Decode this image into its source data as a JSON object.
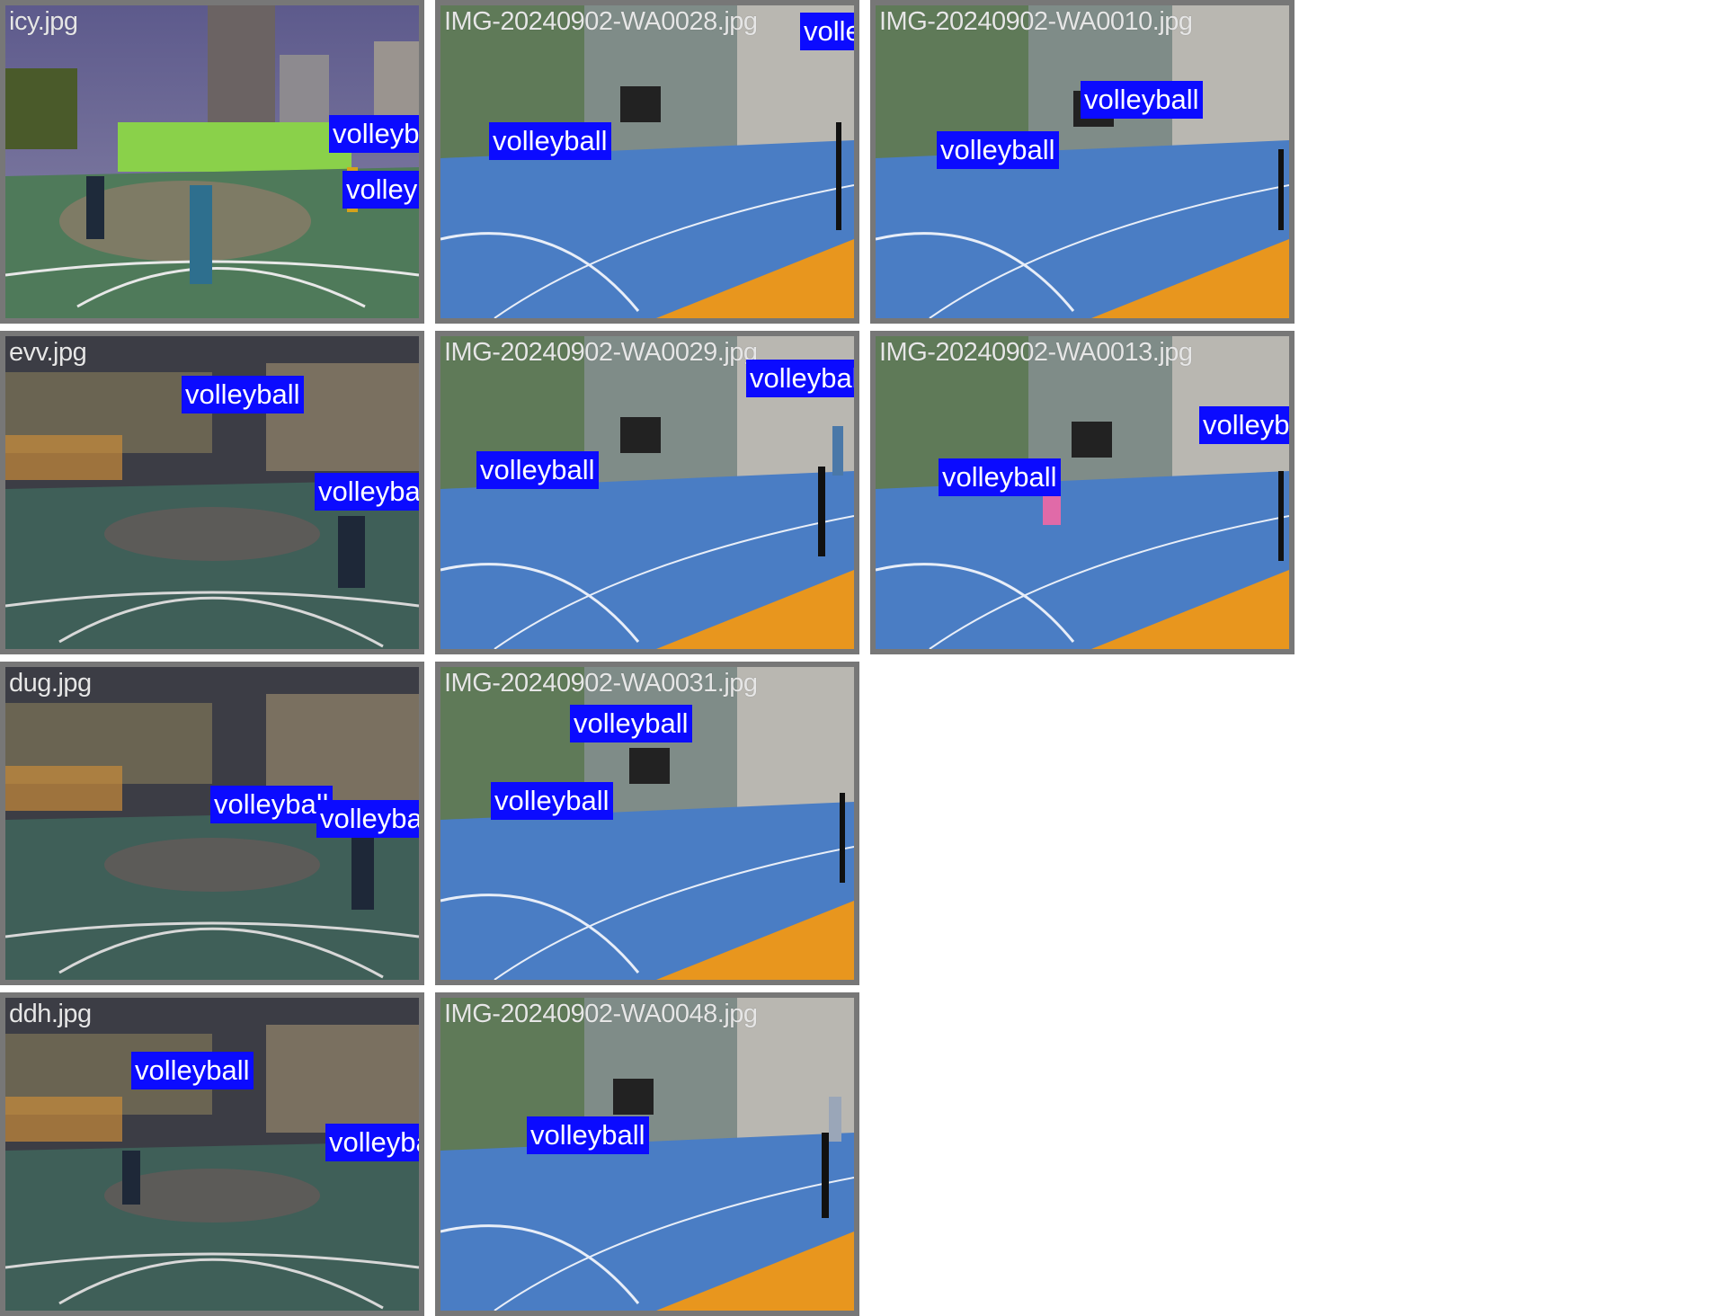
{
  "colors": {
    "tile_border": "#777777",
    "label_bg": "#0b0bff",
    "label_text": "#ffffff",
    "filename_text": "#e6e6e6"
  },
  "tiles": [
    {
      "filename": "icy.jpg",
      "scene": "outdoor-dusk",
      "detections": [
        "volleyball",
        "volleyball"
      ]
    },
    {
      "filename": "IMG-20240902-WA0028.jpg",
      "scene": "indoor",
      "detections": [
        "volleyball",
        "volleyball"
      ]
    },
    {
      "filename": "IMG-20240902-WA0010.jpg",
      "scene": "indoor",
      "detections": [
        "volleyball",
        "volleyball"
      ]
    },
    {
      "filename": "evv.jpg",
      "scene": "outdoor-night",
      "detections": [
        "volleyball",
        "volleyball"
      ]
    },
    {
      "filename": "IMG-20240902-WA0029.jpg",
      "scene": "indoor",
      "detections": [
        "volleyball",
        "volleyball"
      ]
    },
    {
      "filename": "IMG-20240902-WA0013.jpg",
      "scene": "indoor",
      "detections": [
        "volleyball",
        "volleyball"
      ]
    },
    {
      "filename": "dug.jpg",
      "scene": "outdoor-night",
      "detections": [
        "volleyball",
        "volleyball"
      ]
    },
    {
      "filename": "IMG-20240902-WA0031.jpg",
      "scene": "indoor",
      "detections": [
        "volleyball",
        "volleyball"
      ]
    },
    {
      "filename": "ddh.jpg",
      "scene": "outdoor-night",
      "detections": [
        "volleyball",
        "volleyball"
      ]
    },
    {
      "filename": "IMG-20240902-WA0048.jpg",
      "scene": "indoor",
      "detections": [
        "volleyball"
      ]
    }
  ]
}
